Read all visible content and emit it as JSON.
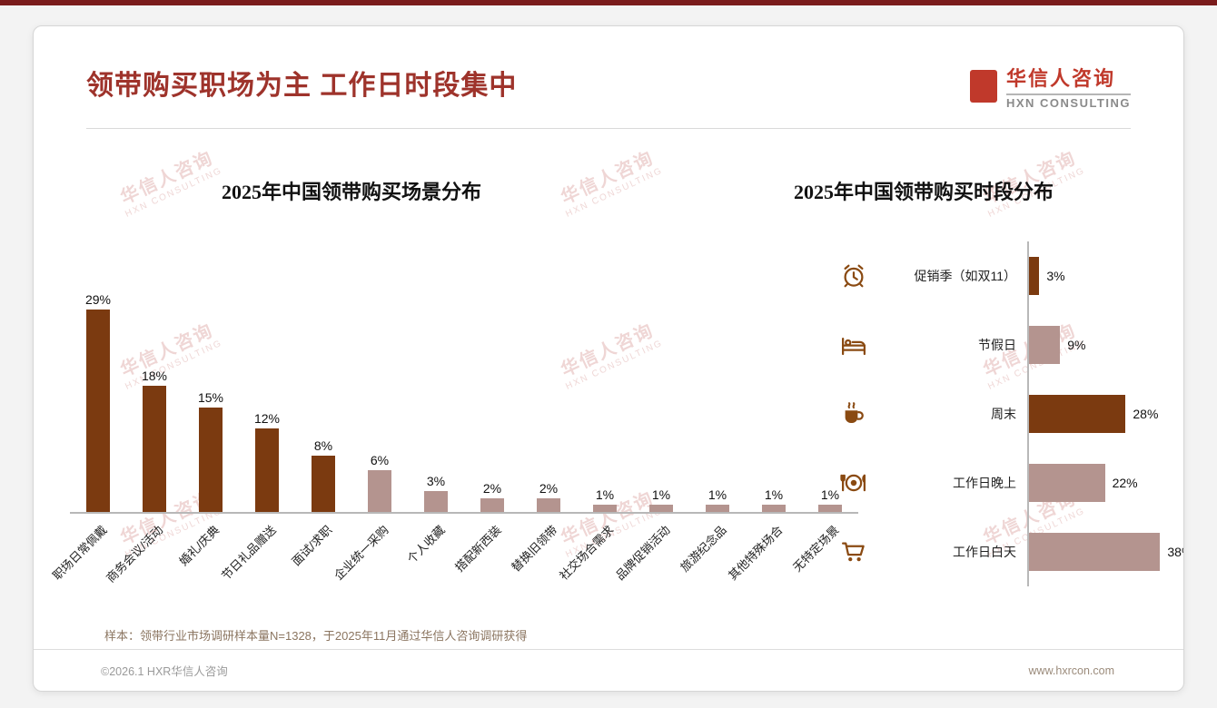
{
  "page": {
    "title": "领带购买职场为主 工作日时段集中",
    "logo": {
      "cn": "华信人咨询",
      "en": "HXN CONSULTING"
    },
    "watermark": {
      "cn": "华信人咨询",
      "en": "HXN CONSULTING"
    },
    "note": "样本：领带行业市场调研样本量N=1328，于2025年11月通过华信人咨询调研获得",
    "footer": {
      "left": "©2026.1 HXR华信人咨询",
      "right": "www.hxrcon.com"
    }
  },
  "colors": {
    "dark_bar": "#7B3A10",
    "light_bar": "#B4948F",
    "title_red": "#9E332B",
    "logo_red": "#C0392B",
    "accent_strip": "#7A1C1C",
    "icon_brown": "#8A4A12",
    "note_brown": "#8B7560"
  },
  "chart_data": [
    {
      "type": "bar",
      "orientation": "vertical",
      "title": "2025年中国领带购买场景分布",
      "categories": [
        "职场日常佩戴",
        "商务会议/活动",
        "婚礼/庆典",
        "节日礼品赠送",
        "面试/求职",
        "企业统一采购",
        "个人收藏",
        "搭配新西装",
        "替换旧领带",
        "社交场合需求",
        "品牌促销活动",
        "旅游纪念品",
        "其他特殊场合",
        "无特定场景"
      ],
      "values": [
        29,
        18,
        15,
        12,
        8,
        6,
        3,
        2,
        2,
        1,
        1,
        1,
        1,
        1
      ],
      "bar_colors": [
        "dark",
        "dark",
        "dark",
        "dark",
        "dark",
        "light",
        "light",
        "light",
        "light",
        "light",
        "light",
        "light",
        "light",
        "light"
      ],
      "value_suffix": "%",
      "ylim": [
        0,
        30
      ],
      "grid": false,
      "legend": "none"
    },
    {
      "type": "bar",
      "orientation": "horizontal",
      "title": "2025年中国领带购买时段分布",
      "categories": [
        "促销季（如双11）",
        "节假日",
        "周末",
        "工作日晚上",
        "工作日白天"
      ],
      "values": [
        3,
        9,
        28,
        22,
        38
      ],
      "icons": [
        "alarm-clock-icon",
        "bed-icon",
        "coffee-icon",
        "dining-icon",
        "cart-icon"
      ],
      "bar_colors": [
        "dark",
        "light",
        "dark",
        "light",
        "light"
      ],
      "value_suffix": "%",
      "xlim": [
        0,
        40
      ],
      "grid": false,
      "legend": "none"
    }
  ]
}
